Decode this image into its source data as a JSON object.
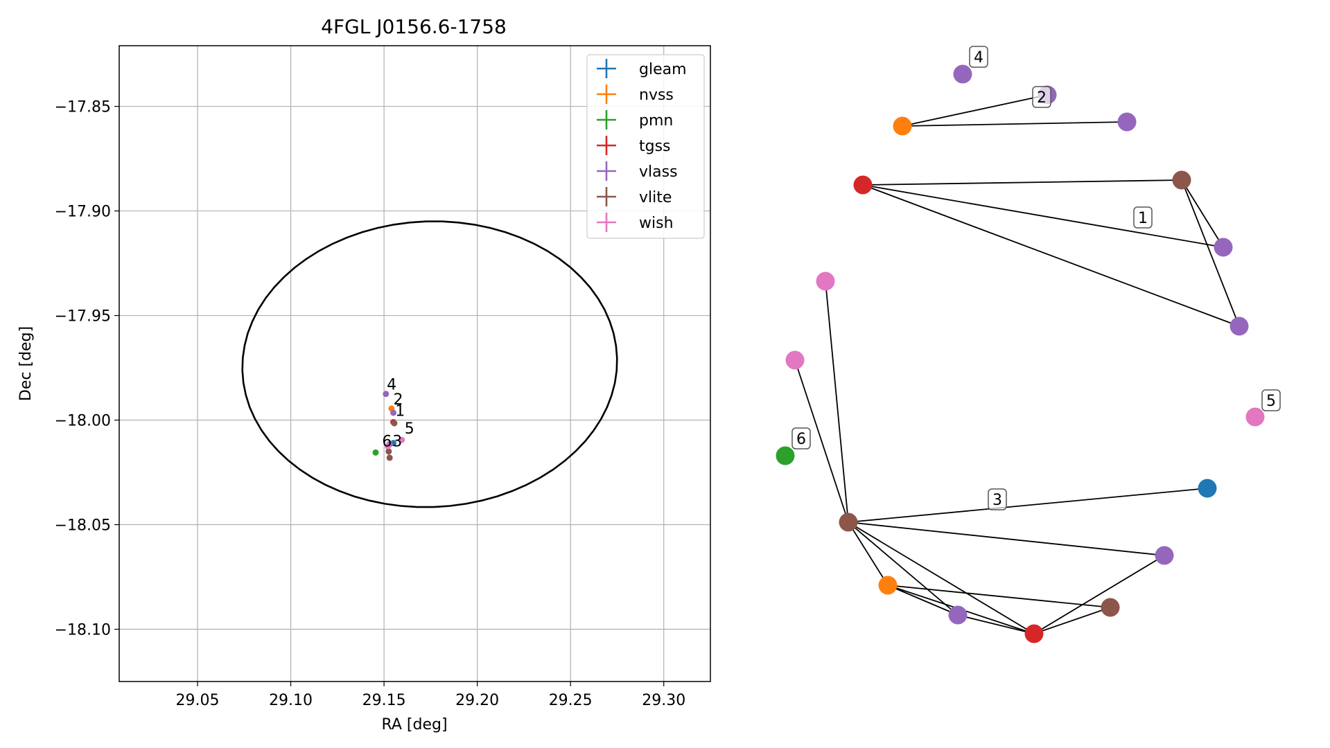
{
  "chart_data": [
    {
      "type": "scatter",
      "title": "4FGL J0156.6-1758",
      "xlabel": "RA [deg]",
      "ylabel": "Dec [deg]",
      "xlim": [
        29.008,
        29.325
      ],
      "ylim": [
        -18.125,
        -17.821
      ],
      "xticks": [
        29.05,
        29.1,
        29.15,
        29.2,
        29.25,
        29.3
      ],
      "xtick_labels": [
        "29.05",
        "29.10",
        "29.15",
        "29.20",
        "29.25",
        "29.30"
      ],
      "yticks": [
        -17.85,
        -17.9,
        -17.95,
        -18.0,
        -18.05,
        -18.1
      ],
      "ytick_labels": [
        "−17.85",
        "−17.90",
        "−17.95",
        "−18.00",
        "−18.05",
        "−18.10"
      ],
      "grid": true,
      "legend_position": "upper-right",
      "legend": [
        "gleam",
        "nvss",
        "pmn",
        "tgss",
        "vlass",
        "vlite",
        "wish"
      ],
      "colors": {
        "gleam": "#1f77b4",
        "nvss": "#ff7f0e",
        "pmn": "#2ca02c",
        "tgss": "#d62728",
        "vlass": "#9467bd",
        "vlite": "#8c564b",
        "wish": "#e377c2"
      },
      "ellipse": {
        "center": [
          29.1745,
          -17.9733
        ],
        "semi_axis_ra": 0.1005,
        "semi_axis_dec": 0.0683,
        "rotation_deg": 1.7,
        "color": "#000000"
      },
      "series": [
        {
          "name": "gleam",
          "points": [
            {
              "x": 29.155,
              "y": -18.011
            }
          ]
        },
        {
          "name": "nvss",
          "points": [
            {
              "x": 29.154,
              "y": -17.9945
            }
          ]
        },
        {
          "name": "pmn",
          "points": [
            {
              "x": 29.1455,
              "y": -18.0155
            }
          ]
        },
        {
          "name": "tgss",
          "points": [
            {
              "x": 29.155,
              "y": -18.001
            }
          ]
        },
        {
          "name": "vlass",
          "points": [
            {
              "x": 29.151,
              "y": -17.9875
            },
            {
              "x": 29.155,
              "y": -17.9965
            },
            {
              "x": 29.153,
              "y": -18.0115
            }
          ]
        },
        {
          "name": "vlite",
          "points": [
            {
              "x": 29.1555,
              "y": -18.0015
            },
            {
              "x": 29.1525,
              "y": -18.015
            },
            {
              "x": 29.153,
              "y": -18.018
            }
          ]
        },
        {
          "name": "wish",
          "points": [
            {
              "x": 29.1595,
              "y": -18.0095
            },
            {
              "x": 29.152,
              "y": -18.0125
            }
          ]
        }
      ],
      "annotations": [
        {
          "text": "4",
          "x": 29.1515,
          "y": -17.9855
        },
        {
          "text": "2",
          "x": 29.155,
          "y": -17.9925
        },
        {
          "text": "1",
          "x": 29.156,
          "y": -17.998
        },
        {
          "text": "5",
          "x": 29.161,
          "y": -18.0065
        },
        {
          "text": "6",
          "x": 29.149,
          "y": -18.0125
        },
        {
          "text": "3",
          "x": 29.1545,
          "y": -18.0125
        }
      ]
    },
    {
      "type": "network",
      "nodes": [
        {
          "id": "a1",
          "catalog": "vlass"
        },
        {
          "id": "a2",
          "catalog": "vlass"
        },
        {
          "id": "a3",
          "catalog": "nvss"
        },
        {
          "id": "a4",
          "catalog": "vlass"
        },
        {
          "id": "b1",
          "catalog": "tgss"
        },
        {
          "id": "b2",
          "catalog": "vlite"
        },
        {
          "id": "b3",
          "catalog": "vlass"
        },
        {
          "id": "b4",
          "catalog": "vlass"
        },
        {
          "id": "w1",
          "catalog": "wish"
        },
        {
          "id": "w2",
          "catalog": "wish"
        },
        {
          "id": "p1",
          "catalog": "pmn"
        },
        {
          "id": "w3",
          "catalog": "wish"
        },
        {
          "id": "c1",
          "catalog": "vlite"
        },
        {
          "id": "c2",
          "catalog": "gleam"
        },
        {
          "id": "c3",
          "catalog": "vlass"
        },
        {
          "id": "c4",
          "catalog": "nvss"
        },
        {
          "id": "c5",
          "catalog": "vlass"
        },
        {
          "id": "c6",
          "catalog": "tgss"
        },
        {
          "id": "c7",
          "catalog": "vlite"
        }
      ],
      "edges": [
        [
          "a3",
          "a2"
        ],
        [
          "a3",
          "a4"
        ],
        [
          "b1",
          "b2"
        ],
        [
          "b1",
          "b3"
        ],
        [
          "b1",
          "b4"
        ],
        [
          "b2",
          "b3"
        ],
        [
          "b2",
          "b4"
        ],
        [
          "c1",
          "w1"
        ],
        [
          "c1",
          "w2"
        ],
        [
          "c1",
          "c2"
        ],
        [
          "c1",
          "c3"
        ],
        [
          "c1",
          "c4"
        ],
        [
          "c1",
          "c5"
        ],
        [
          "c1",
          "c6"
        ],
        [
          "c4",
          "c5"
        ],
        [
          "c4",
          "c6"
        ],
        [
          "c4",
          "c7"
        ],
        [
          "c5",
          "c6"
        ],
        [
          "c6",
          "c7"
        ],
        [
          "c6",
          "c3"
        ]
      ],
      "group_labels": [
        {
          "text": "4",
          "node": "a1"
        },
        {
          "text": "2",
          "node": "a2"
        },
        {
          "text": "1",
          "node": "b"
        },
        {
          "text": "5",
          "node": "w3"
        },
        {
          "text": "6",
          "node": "p1"
        },
        {
          "text": "3",
          "node": "c"
        }
      ]
    }
  ]
}
